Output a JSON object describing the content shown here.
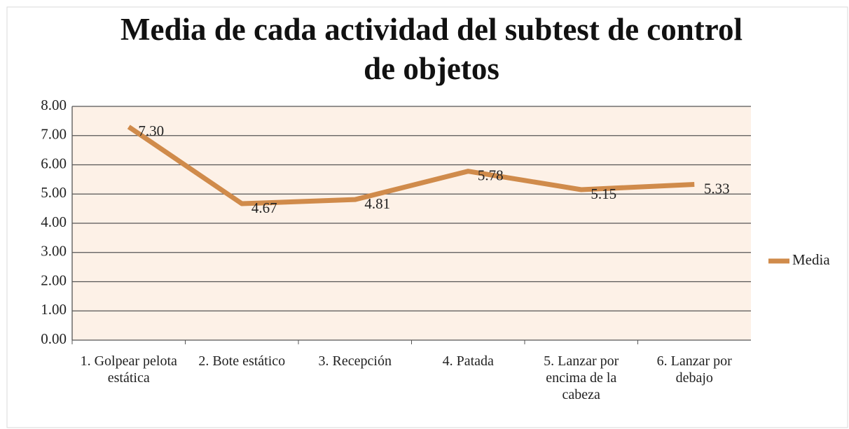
{
  "chart_data": {
    "type": "line",
    "title": "Media de cada actividad del subtest de control de objetos",
    "categories": [
      "1. Golpear pelota estática",
      "2. Bote estático",
      "3. Recepción",
      "4. Patada",
      "5. Lanzar por encima de la cabeza",
      "6. Lanzar por debajo"
    ],
    "series": [
      {
        "name": "Media",
        "color": "#d08b4b",
        "values": [
          7.3,
          4.67,
          4.81,
          5.78,
          5.15,
          5.33
        ],
        "value_labels": [
          "7.30",
          "4.67",
          "4.81",
          "5.78",
          "5.15",
          "5.33"
        ]
      }
    ],
    "ylim": [
      0,
      8
    ],
    "yticks": [
      {
        "value": 0,
        "label": "0.00"
      },
      {
        "value": 1,
        "label": "1.00"
      },
      {
        "value": 2,
        "label": "2.00"
      },
      {
        "value": 3,
        "label": "3.00"
      },
      {
        "value": 4,
        "label": "4.00"
      },
      {
        "value": 5,
        "label": "5.00"
      },
      {
        "value": 6,
        "label": "6.00"
      },
      {
        "value": 7,
        "label": "7.00"
      },
      {
        "value": 8,
        "label": "8.00"
      }
    ],
    "grid": true,
    "legend": "right"
  }
}
